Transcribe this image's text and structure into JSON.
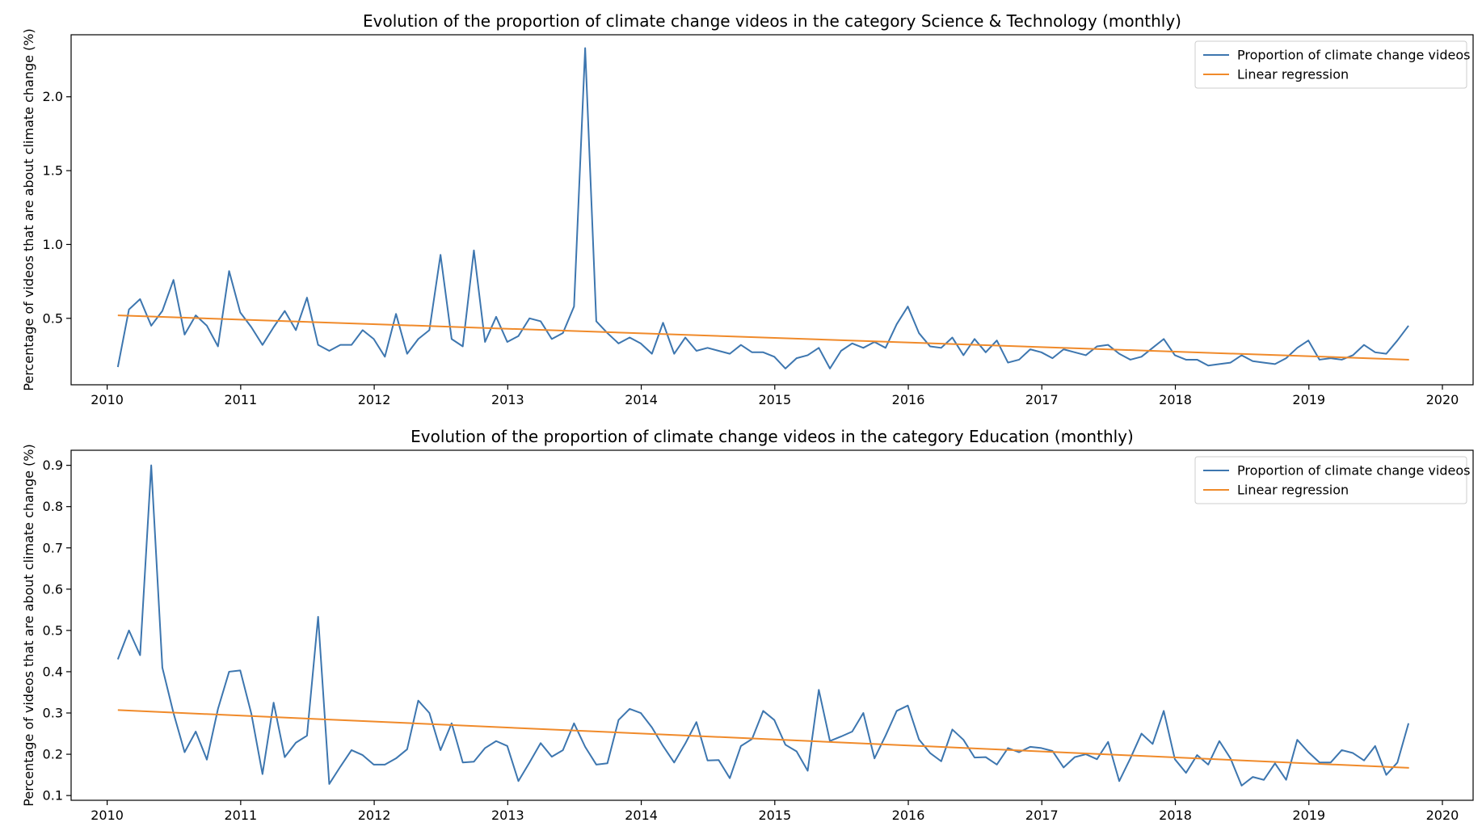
{
  "colors": {
    "series": "#3d76af",
    "regression": "#f08a2a",
    "axis": "#000000",
    "legend_border": "#cccccc"
  },
  "chart_data": [
    {
      "type": "line",
      "title": "Evolution of the proportion of climate change videos in the category Science & Technology (monthly)",
      "xlabel": "",
      "ylabel": "Percentage of videos that are about climate change (%)",
      "xlim": [
        2009.73,
        2020.23
      ],
      "ylim": [
        0.05,
        2.42
      ],
      "xticks": [
        2010,
        2011,
        2012,
        2013,
        2014,
        2015,
        2016,
        2017,
        2018,
        2019,
        2020
      ],
      "yticks": [
        0.5,
        1.0,
        1.5,
        2.0
      ],
      "ytick_labels": [
        "0.5",
        "1.0",
        "1.5",
        "2.0"
      ],
      "legend": {
        "position": "top-right",
        "entries": [
          "Proportion of climate change videos",
          "Linear regression"
        ]
      },
      "series": [
        {
          "name": "Proportion of climate change videos",
          "x_start": 2010.08,
          "x_step": 0.08333,
          "values": [
            0.17,
            0.56,
            0.63,
            0.45,
            0.55,
            0.76,
            0.39,
            0.52,
            0.45,
            0.31,
            0.82,
            0.54,
            0.44,
            0.32,
            0.44,
            0.55,
            0.42,
            0.64,
            0.32,
            0.28,
            0.32,
            0.32,
            0.42,
            0.36,
            0.24,
            0.53,
            0.26,
            0.36,
            0.42,
            0.93,
            0.36,
            0.31,
            0.96,
            0.34,
            0.51,
            0.34,
            0.38,
            0.5,
            0.48,
            0.36,
            0.4,
            0.58,
            2.33,
            0.48,
            0.4,
            0.33,
            0.37,
            0.33,
            0.26,
            0.47,
            0.26,
            0.37,
            0.28,
            0.3,
            0.28,
            0.26,
            0.32,
            0.27,
            0.27,
            0.24,
            0.16,
            0.23,
            0.25,
            0.3,
            0.16,
            0.28,
            0.33,
            0.3,
            0.34,
            0.3,
            0.46,
            0.58,
            0.4,
            0.31,
            0.3,
            0.37,
            0.25,
            0.36,
            0.27,
            0.35,
            0.2,
            0.22,
            0.29,
            0.27,
            0.23,
            0.29,
            0.27,
            0.25,
            0.31,
            0.32,
            0.26,
            0.22,
            0.24,
            0.3,
            0.36,
            0.25,
            0.22,
            0.22,
            0.18,
            0.19,
            0.2,
            0.25,
            0.21,
            0.2,
            0.19,
            0.23,
            0.3,
            0.35,
            0.22,
            0.23,
            0.22,
            0.25,
            0.32,
            0.27,
            0.26,
            0.35,
            0.45
          ]
        },
        {
          "name": "Linear regression",
          "x": [
            2010.08,
            2019.75
          ],
          "values": [
            0.52,
            0.22
          ]
        }
      ]
    },
    {
      "type": "line",
      "title": "Evolution of the proportion of climate change videos in the category Education (monthly)",
      "xlabel": "",
      "ylabel": "Percentage of videos that are about climate change (%)",
      "xlim": [
        2009.73,
        2020.23
      ],
      "ylim": [
        0.0885,
        0.9365
      ],
      "xticks": [
        2010,
        2011,
        2012,
        2013,
        2014,
        2015,
        2016,
        2017,
        2018,
        2019,
        2020
      ],
      "yticks": [
        0.1,
        0.2,
        0.3,
        0.4,
        0.5,
        0.6,
        0.7,
        0.8,
        0.9
      ],
      "ytick_labels": [
        "0.1",
        "0.2",
        "0.3",
        "0.4",
        "0.5",
        "0.6",
        "0.7",
        "0.8",
        "0.9"
      ],
      "legend": {
        "position": "top-right",
        "entries": [
          "Proportion of climate change videos",
          "Linear regression"
        ]
      },
      "series": [
        {
          "name": "Proportion of climate change videos",
          "x_start": 2010.08,
          "x_step": 0.08333,
          "values": [
            0.43,
            0.5,
            0.44,
            0.9,
            0.41,
            0.3,
            0.205,
            0.255,
            0.187,
            0.31,
            0.4,
            0.403,
            0.298,
            0.152,
            0.325,
            0.193,
            0.228,
            0.245,
            0.533,
            0.128,
            0.17,
            0.21,
            0.198,
            0.175,
            0.175,
            0.19,
            0.212,
            0.33,
            0.3,
            0.21,
            0.275,
            0.18,
            0.182,
            0.215,
            0.232,
            0.22,
            0.135,
            0.18,
            0.227,
            0.194,
            0.21,
            0.275,
            0.218,
            0.175,
            0.178,
            0.283,
            0.31,
            0.3,
            0.265,
            0.22,
            0.18,
            0.226,
            0.278,
            0.185,
            0.186,
            0.142,
            0.22,
            0.237,
            0.305,
            0.283,
            0.223,
            0.207,
            0.16,
            0.356,
            0.232,
            0.243,
            0.255,
            0.3,
            0.19,
            0.245,
            0.305,
            0.318,
            0.236,
            0.203,
            0.183,
            0.26,
            0.235,
            0.192,
            0.193,
            0.175,
            0.215,
            0.205,
            0.218,
            0.215,
            0.208,
            0.168,
            0.193,
            0.2,
            0.188,
            0.23,
            0.135,
            0.19,
            0.25,
            0.225,
            0.305,
            0.188,
            0.155,
            0.198,
            0.175,
            0.232,
            0.19,
            0.124,
            0.145,
            0.138,
            0.178,
            0.138,
            0.235,
            0.205,
            0.18,
            0.18,
            0.21,
            0.203,
            0.185,
            0.22,
            0.15,
            0.18,
            0.275
          ]
        },
        {
          "name": "Linear regression",
          "x": [
            2010.08,
            2019.75
          ],
          "values": [
            0.307,
            0.167
          ]
        }
      ]
    }
  ]
}
